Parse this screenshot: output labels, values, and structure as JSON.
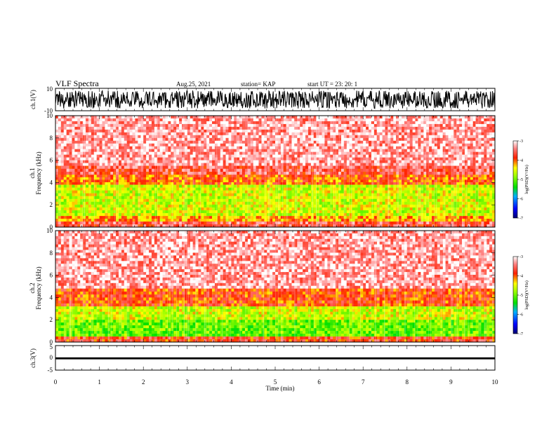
{
  "header": {
    "title": "VLF Spectra",
    "date": "Aug.25, 2021",
    "station": "station= KAP",
    "start": "start  UT  =   23: 20: 1"
  },
  "chart_data": [
    {
      "type": "line",
      "name": "ch1-waveform",
      "ylabel": "ch.1(V)",
      "ylim": [
        -10,
        10
      ],
      "yticks": [
        "10",
        "-10"
      ],
      "xlim": [
        0,
        10
      ],
      "note_envelope": [
        -8,
        8
      ]
    },
    {
      "type": "heatmap",
      "name": "ch1-spectrogram",
      "ylabel": "ch.1\nFrequency  (kHz)",
      "ylim": [
        0,
        10
      ],
      "yticks": [
        "0",
        "2",
        "4",
        "6",
        "8",
        "10"
      ],
      "xlim": [
        0,
        10
      ],
      "colorbar": {
        "label": "log(PSD)(V²/Hz)",
        "range": [
          -7,
          -3
        ],
        "ticks": [
          "-3",
          "-4",
          "-5",
          "-6",
          "-7"
        ]
      },
      "bands": [
        {
          "f_from": 5.5,
          "f_to": 10.0,
          "level": -3.3
        },
        {
          "f_from": 4.7,
          "f_to": 5.5,
          "level": -3.6
        },
        {
          "f_from": 3.8,
          "f_to": 4.7,
          "level": -4.0
        },
        {
          "f_from": 1.0,
          "f_to": 3.8,
          "level": -4.6
        },
        {
          "f_from": 0.5,
          "f_to": 1.0,
          "level": -4.2
        },
        {
          "f_from": 0.0,
          "f_to": 0.5,
          "level": -3.6
        }
      ]
    },
    {
      "type": "heatmap",
      "name": "ch2-spectrogram",
      "ylabel": "ch.2\nFrequency  (kHz)",
      "ylim": [
        0,
        10
      ],
      "yticks": [
        "0",
        "2",
        "4",
        "6",
        "8",
        "10"
      ],
      "xlim": [
        0,
        10
      ],
      "colorbar": {
        "label": "log(PSD)(V²/Hz)",
        "range": [
          -7,
          -3
        ],
        "ticks": [
          "-3",
          "-4",
          "-5",
          "-6",
          "-7"
        ]
      },
      "bands": [
        {
          "f_from": 4.8,
          "f_to": 10.0,
          "level": -3.3
        },
        {
          "f_from": 3.2,
          "f_to": 4.8,
          "level": -3.9
        },
        {
          "f_from": 2.0,
          "f_to": 3.2,
          "level": -4.6
        },
        {
          "f_from": 0.5,
          "f_to": 2.0,
          "level": -5.0
        },
        {
          "f_from": 0.0,
          "f_to": 0.5,
          "level": -3.8
        }
      ]
    },
    {
      "type": "line",
      "name": "ch3-waveform",
      "ylabel": "ch.3(V)",
      "ylim": [
        -5,
        5
      ],
      "yticks": [
        "5",
        "0",
        "-5"
      ],
      "xlim": [
        0,
        10
      ],
      "xlabel": "Time  (min)",
      "xticks": [
        "0",
        "1",
        "2",
        "3",
        "4",
        "5",
        "6",
        "7",
        "8",
        "9",
        "10"
      ],
      "note_envelope": [
        -0.6,
        0.2
      ]
    }
  ]
}
